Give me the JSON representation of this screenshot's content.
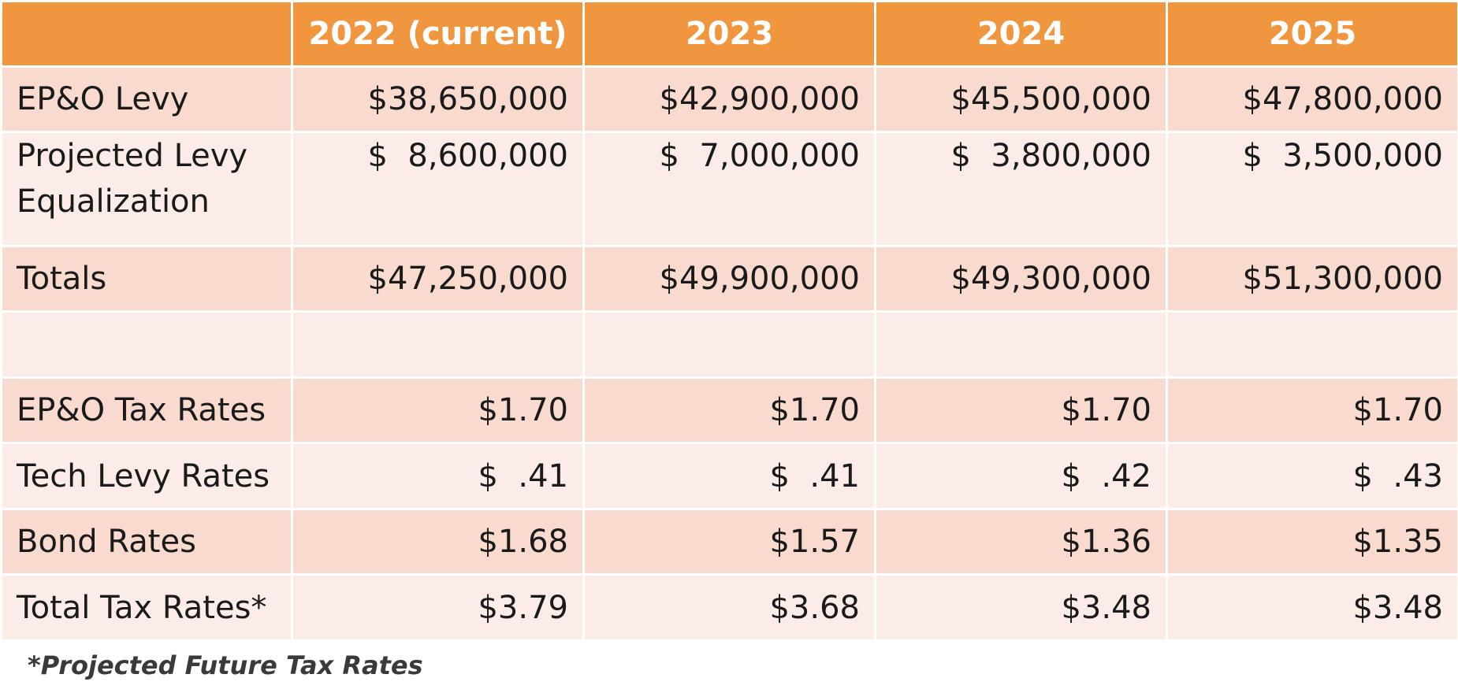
{
  "table": {
    "header": [
      "",
      "2022 (current)",
      "2023",
      "2024",
      "2025"
    ],
    "rows": [
      {
        "label": "EP&O Levy",
        "values": [
          "$38,650,000",
          "$42,900,000",
          "$45,500,000",
          "$47,800,000"
        ]
      },
      {
        "label": "Projected Levy Equalization",
        "values": [
          "$  8,600,000",
          "$  7,000,000",
          "$  3,800,000",
          "$  3,500,000"
        ]
      },
      {
        "label": "Totals",
        "values": [
          "$47,250,000",
          "$49,900,000",
          "$49,300,000",
          "$51,300,000"
        ]
      },
      {
        "label": "",
        "values": [
          "",
          "",
          "",
          ""
        ]
      },
      {
        "label": "EP&O Tax Rates",
        "values": [
          "$1.70",
          "$1.70",
          "$1.70",
          "$1.70"
        ]
      },
      {
        "label": "Tech Levy Rates",
        "values": [
          "$  .41",
          "$  .41",
          "$  .42",
          "$  .43"
        ]
      },
      {
        "label": "Bond Rates",
        "values": [
          "$1.68",
          "$1.57",
          "$1.36",
          "$1.35"
        ]
      },
      {
        "label": "Total Tax Rates*",
        "values": [
          "$3.79",
          "$3.68",
          "$3.48",
          "$3.48"
        ]
      }
    ]
  },
  "footnote": "*Projected Future Tax Rates",
  "colors": {
    "header_bg": "#f0963f",
    "row_dark": "#f8dacf",
    "row_light": "#fbece8"
  }
}
